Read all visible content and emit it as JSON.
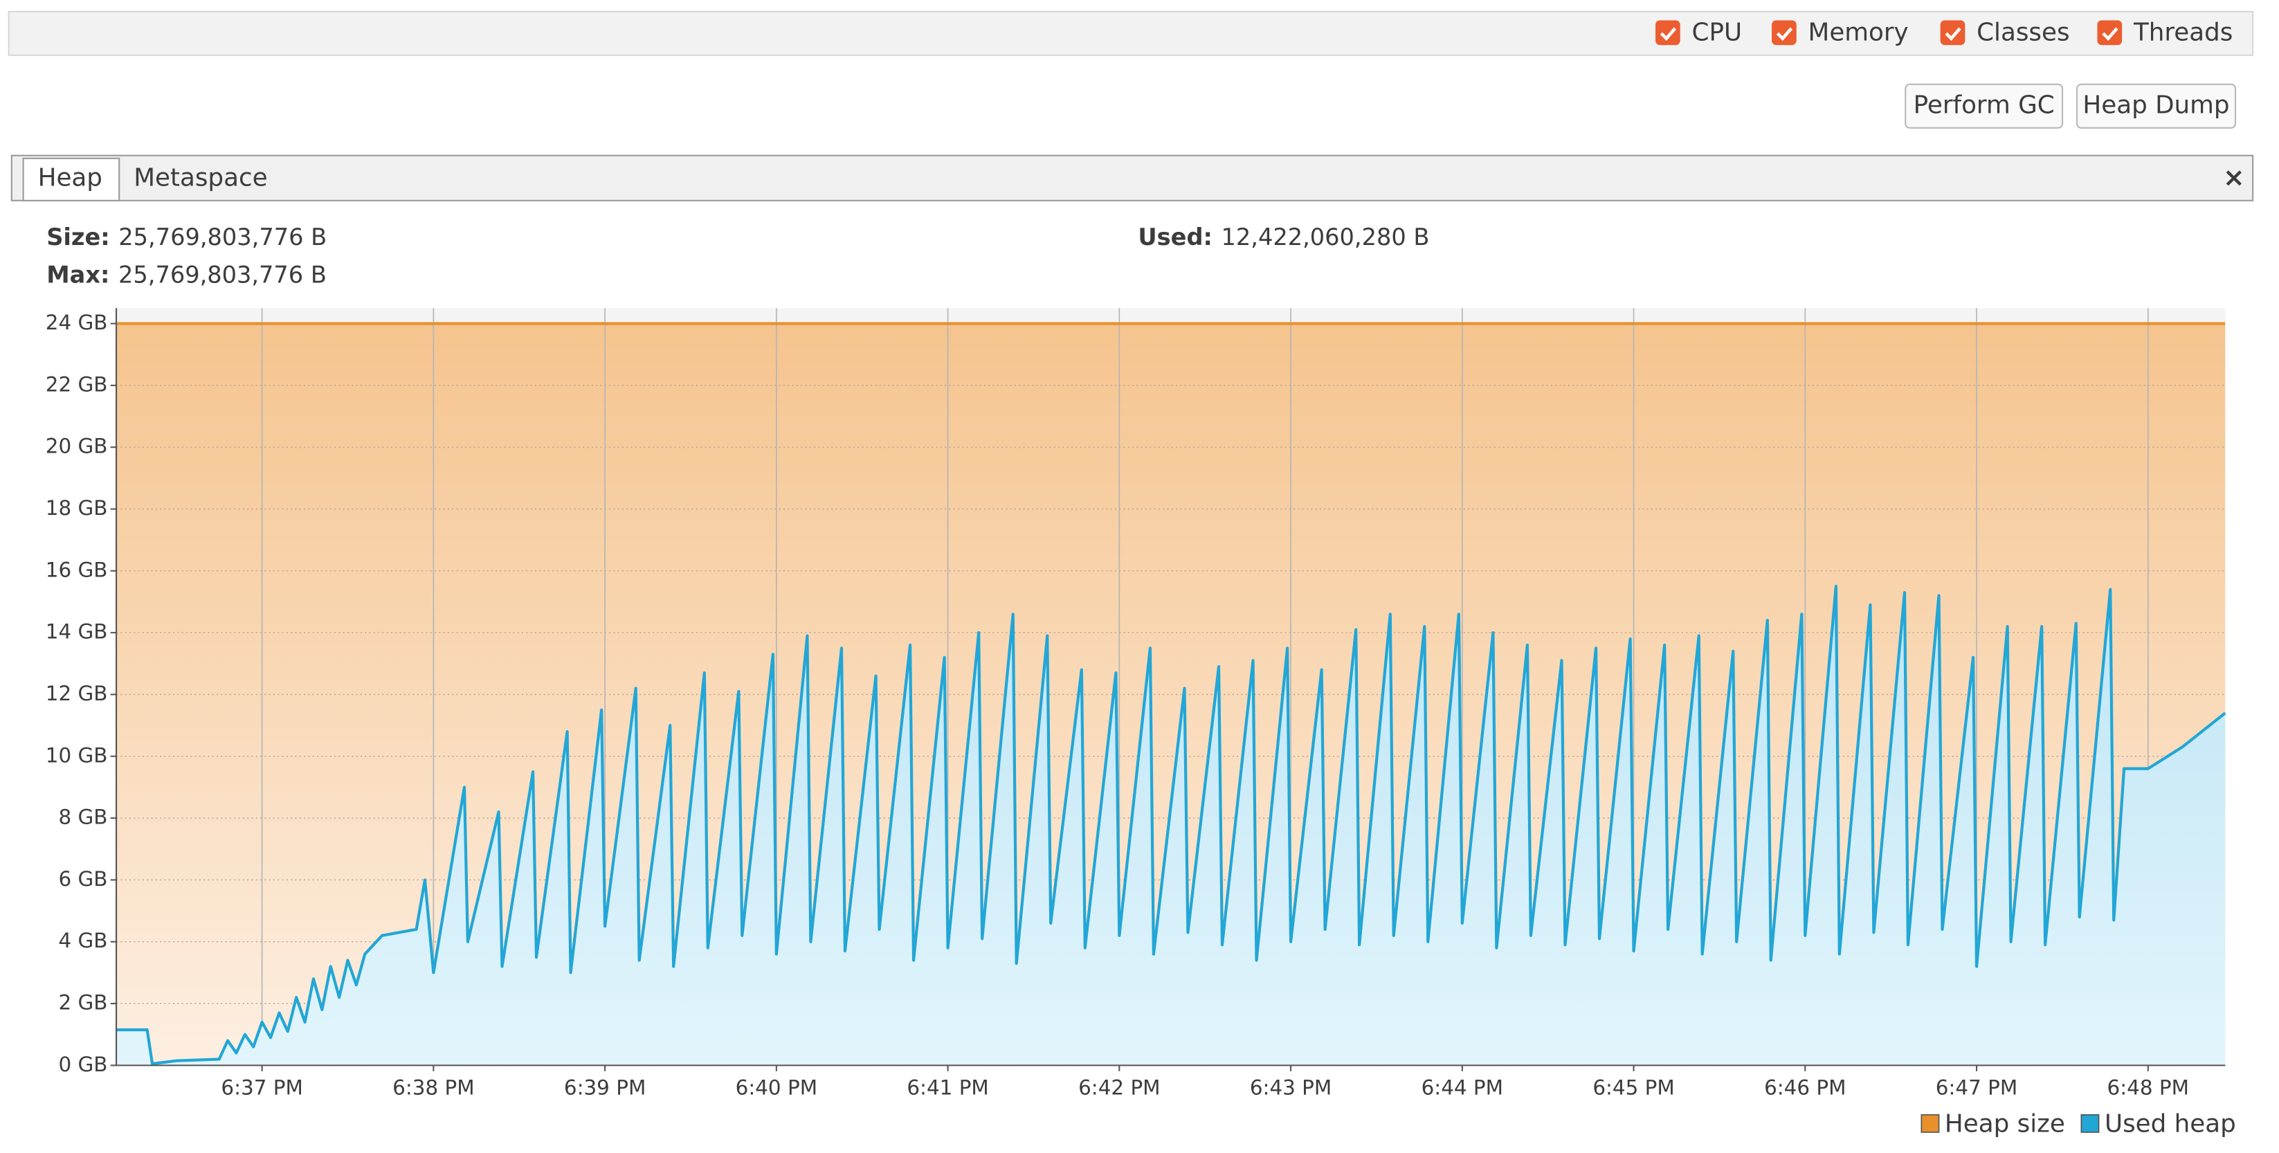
{
  "toolbar": {
    "checkboxes": [
      "CPU",
      "Memory",
      "Classes",
      "Threads"
    ],
    "buttons": [
      "Perform GC",
      "Heap Dump"
    ]
  },
  "tabs": [
    "Heap",
    "Metaspace"
  ],
  "info": [
    {
      "label": "Size:",
      "value": "25,769,803,776 B"
    },
    {
      "label": "Max:",
      "value": "25,769,803,776 B"
    },
    {
      "label": "Used:",
      "value": "12,422,060,280 B"
    }
  ],
  "chart_data": {
    "type": "area",
    "xlim": [
      36.15,
      48.45
    ],
    "xticks": [
      {
        "value": 37,
        "label": "6:37 PM"
      },
      {
        "value": 38,
        "label": "6:38 PM"
      },
      {
        "value": 39,
        "label": "6:39 PM"
      },
      {
        "value": 40,
        "label": "6:40 PM"
      },
      {
        "value": 41,
        "label": "6:41 PM"
      },
      {
        "value": 42,
        "label": "6:42 PM"
      },
      {
        "value": 43,
        "label": "6:43 PM"
      },
      {
        "value": 44,
        "label": "6:44 PM"
      },
      {
        "value": 45,
        "label": "6:45 PM"
      },
      {
        "value": 46,
        "label": "6:46 PM"
      },
      {
        "value": 47,
        "label": "6:47 PM"
      },
      {
        "value": 48,
        "label": "6:48 PM"
      }
    ],
    "ylim": [
      0,
      24.5
    ],
    "yticks": [
      {
        "value": 0,
        "label": "0 GB"
      },
      {
        "value": 2,
        "label": "2 GB"
      },
      {
        "value": 4,
        "label": "4 GB"
      },
      {
        "value": 6,
        "label": "6 GB"
      },
      {
        "value": 8,
        "label": "8 GB"
      },
      {
        "value": 10,
        "label": "10 GB"
      },
      {
        "value": 12,
        "label": "12 GB"
      },
      {
        "value": 14,
        "label": "14 GB"
      },
      {
        "value": 16,
        "label": "16 GB"
      },
      {
        "value": 18,
        "label": "18 GB"
      },
      {
        "value": 20,
        "label": "20 GB"
      },
      {
        "value": 22,
        "label": "22 GB"
      },
      {
        "value": 24,
        "label": "24 GB"
      }
    ],
    "grid": true,
    "legend": "bottom-right",
    "series": [
      {
        "name": "Heap size",
        "color": "#e8912a",
        "x": [
          36.15,
          48.45
        ],
        "values": [
          24,
          24
        ]
      },
      {
        "name": "Used heap",
        "color": "#22a6d6",
        "x": [
          36.15,
          36.33,
          36.36,
          36.5,
          36.75,
          36.8,
          36.85,
          36.9,
          36.95,
          37.0,
          37.05,
          37.1,
          37.15,
          37.2,
          37.25,
          37.3,
          37.35,
          37.4,
          37.45,
          37.5,
          37.55,
          37.6,
          37.7,
          37.9,
          37.95,
          38.0,
          38.18,
          38.2,
          38.38,
          38.4,
          38.58,
          38.6,
          38.78,
          38.8,
          38.98,
          39.0,
          39.18,
          39.2,
          39.38,
          39.4,
          39.58,
          39.6,
          39.78,
          39.8,
          39.98,
          40.0,
          40.18,
          40.2,
          40.38,
          40.4,
          40.58,
          40.6,
          40.78,
          40.8,
          40.98,
          41.0,
          41.18,
          41.2,
          41.38,
          41.4,
          41.58,
          41.6,
          41.78,
          41.8,
          41.98,
          42.0,
          42.18,
          42.2,
          42.38,
          42.4,
          42.58,
          42.6,
          42.78,
          42.8,
          42.98,
          43.0,
          43.18,
          43.2,
          43.38,
          43.4,
          43.58,
          43.6,
          43.78,
          43.8,
          43.98,
          44.0,
          44.18,
          44.2,
          44.38,
          44.4,
          44.58,
          44.6,
          44.78,
          44.8,
          44.98,
          45.0,
          45.18,
          45.2,
          45.38,
          45.4,
          45.58,
          45.6,
          45.78,
          45.8,
          45.98,
          46.0,
          46.18,
          46.2,
          46.38,
          46.4,
          46.58,
          46.6,
          46.78,
          46.8,
          46.98,
          47.0,
          47.18,
          47.2,
          47.38,
          47.4,
          47.58,
          47.6,
          47.78,
          47.8,
          47.86,
          48.0,
          48.2,
          48.45
        ],
        "values": [
          1.15,
          1.15,
          0.05,
          0.15,
          0.2,
          0.8,
          0.4,
          1.0,
          0.6,
          1.4,
          0.9,
          1.7,
          1.1,
          2.2,
          1.4,
          2.8,
          1.8,
          3.2,
          2.2,
          3.4,
          2.6,
          3.6,
          4.2,
          4.4,
          6.0,
          3.0,
          9.0,
          4.0,
          8.2,
          3.2,
          9.5,
          3.5,
          10.8,
          3.0,
          11.5,
          4.5,
          12.2,
          3.4,
          11.0,
          3.2,
          12.7,
          3.8,
          12.1,
          4.2,
          13.3,
          3.6,
          13.9,
          4.0,
          13.5,
          3.7,
          12.6,
          4.4,
          13.6,
          3.4,
          13.2,
          3.8,
          14.0,
          4.1,
          14.6,
          3.3,
          13.9,
          4.6,
          12.8,
          3.8,
          12.7,
          4.2,
          13.5,
          3.6,
          12.2,
          4.3,
          12.9,
          3.9,
          13.1,
          3.4,
          13.5,
          4.0,
          12.8,
          4.4,
          14.1,
          3.9,
          14.6,
          4.2,
          14.2,
          4.0,
          14.6,
          4.6,
          14.0,
          3.8,
          13.6,
          4.2,
          13.1,
          3.9,
          13.5,
          4.1,
          13.8,
          3.7,
          13.6,
          4.4,
          13.9,
          3.6,
          13.4,
          4.0,
          14.4,
          3.4,
          14.6,
          4.2,
          15.5,
          3.6,
          14.9,
          4.3,
          15.3,
          3.9,
          15.2,
          4.4,
          13.2,
          3.2,
          14.2,
          4.0,
          14.2,
          3.9,
          14.3,
          4.8,
          15.4,
          4.7,
          9.6,
          9.6,
          10.3,
          11.4
        ]
      }
    ]
  }
}
